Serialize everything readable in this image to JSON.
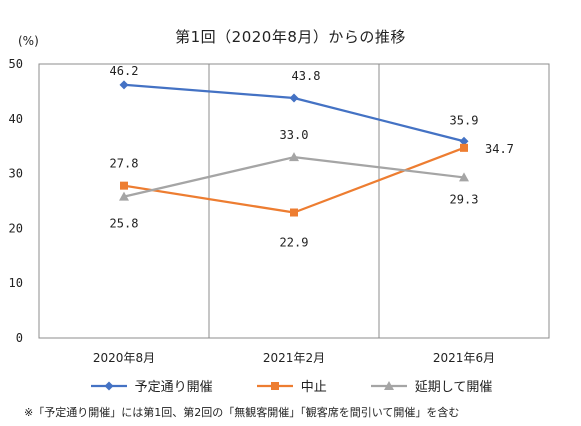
{
  "chart_data": {
    "type": "line",
    "title": "第1回（2020年8月）からの推移",
    "ylabel": "(%)",
    "ylim": [
      0,
      50
    ],
    "yticks": [
      0,
      10,
      20,
      30,
      40,
      50
    ],
    "categories": [
      "2020年8月",
      "2021年2月",
      "2021年6月"
    ],
    "series": [
      {
        "name": "予定通り開催",
        "color": "#4472C4",
        "marker": "diamond",
        "values": [
          46.2,
          43.8,
          35.9
        ]
      },
      {
        "name": "中止",
        "color": "#ED7D31",
        "marker": "square",
        "values": [
          27.8,
          22.9,
          34.7
        ]
      },
      {
        "name": "延期して開催",
        "color": "#A5A5A5",
        "marker": "triangle",
        "values": [
          25.8,
          33.0,
          29.3
        ]
      }
    ],
    "data_labels": [
      [
        "46.2",
        "43.8",
        "35.9"
      ],
      [
        "27.8",
        "22.9",
        "34.7"
      ],
      [
        "25.8",
        "33.0",
        "29.3"
      ]
    ],
    "legend_position": "bottom",
    "grid": {
      "x_category_dividers": true,
      "y_gridlines": false
    },
    "footnote": "※「予定通り開催」には第1回、第2回の「無観客開催」「観客席を間引いて開催」を含む"
  }
}
